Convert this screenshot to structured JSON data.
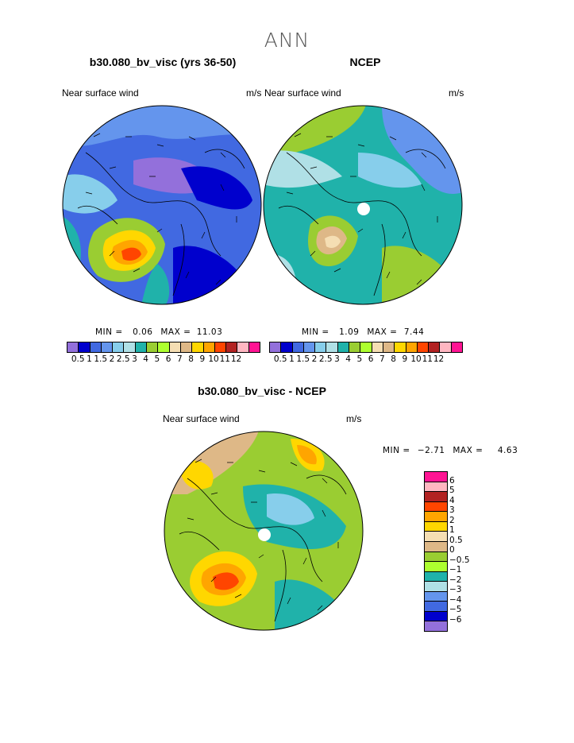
{
  "page": {
    "title": "ANN"
  },
  "panels": [
    {
      "title": "b30.080_bv_visc (yrs 36-50)",
      "variable": "Near surface wind",
      "units": "m/s",
      "min_label": "MIN =",
      "min_value": "0.06",
      "max_label": "MAX =",
      "max_value": "11.03"
    },
    {
      "title": "NCEP",
      "variable": "Near surface wind",
      "units": "m/s",
      "min_label": "MIN =",
      "min_value": "1.09",
      "max_label": "MAX =",
      "max_value": "7.44"
    },
    {
      "title": "b30.080_bv_visc - NCEP",
      "variable": "Near surface wind",
      "units": "m/s",
      "min_label": "MIN =",
      "min_value": "−2.71",
      "max_label": "MAX =",
      "max_value": "4.63"
    }
  ],
  "colorbar_abs": {
    "labels": [
      "0.5",
      "1",
      "1.5",
      "2",
      "2.5",
      "3",
      "4",
      "5",
      "6",
      "7",
      "8",
      "9",
      "10",
      "11",
      "12"
    ],
    "colors": [
      "#9370DB",
      "#0000CD",
      "#4169E1",
      "#6495ED",
      "#87CEEB",
      "#B0E0E6",
      "#20B2AA",
      "#9ACD32",
      "#ADFF2F",
      "#F5DEB3",
      "#DEB887",
      "#FFD700",
      "#FFA500",
      "#FF4500",
      "#B22222",
      "#FFB6C1",
      "#FF1493"
    ]
  },
  "colorbar_diff": {
    "labels": [
      "6",
      "5",
      "4",
      "3",
      "2",
      "1",
      "0.5",
      "0",
      "−0.5",
      "−1",
      "−2",
      "−3",
      "−4",
      "−5",
      "−6"
    ],
    "colors": [
      "#FF1493",
      "#FFB6C1",
      "#B22222",
      "#FF4500",
      "#FFA500",
      "#FFD700",
      "#F5DEB3",
      "#DEB887",
      "#9ACD32",
      "#ADFF2F",
      "#20B2AA",
      "#B0E0E6",
      "#6495ED",
      "#4169E1",
      "#0000CD",
      "#9370DB"
    ]
  },
  "colors": {
    "land_outline": "#000000",
    "arrow": "#000000"
  }
}
